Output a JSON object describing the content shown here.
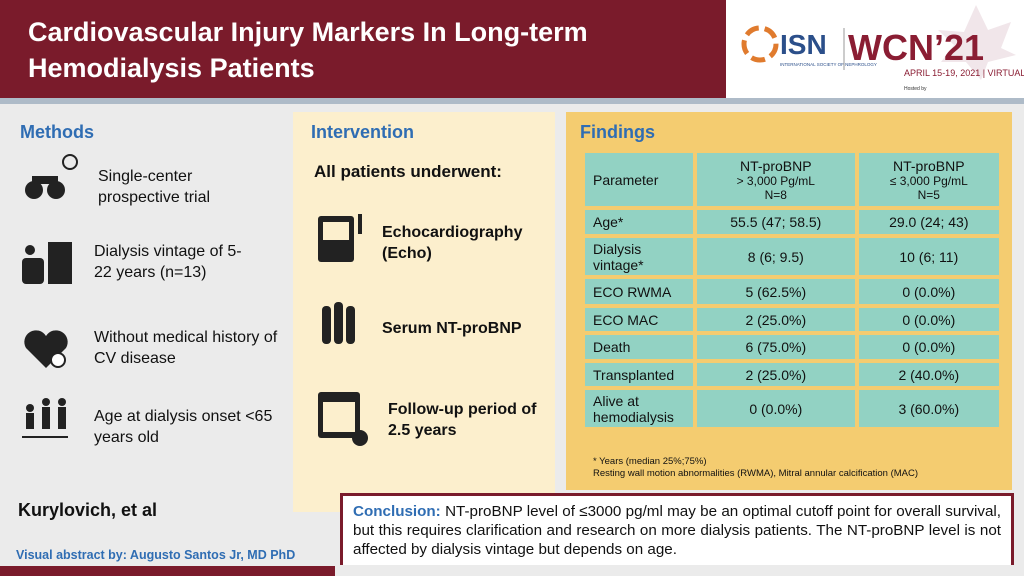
{
  "header": {
    "title": "Cardiovascular Injury Markers In Long-term Hemodialysis Patients",
    "logo": {
      "isn": "ISN",
      "isn_sub": "INTERNATIONAL SOCIETY OF NEPHROLOGY",
      "wcn": "WCN’21",
      "dates": "APRIL 15-19, 2021 | VIRTUAL",
      "hosted": "Hosted by"
    }
  },
  "methods": {
    "title": "Methods",
    "items": [
      "Single-center prospective trial",
      "Dialysis vintage of 5-22 years (n=13)",
      "Without medical history of CV disease",
      "Age at dialysis onset <65 years old"
    ]
  },
  "intervention": {
    "title": "Intervention",
    "lead": "All patients underwent:",
    "items": [
      "Echocardiography (Echo)",
      "Serum NT-proBNP",
      "Follow-up period of 2.5 years"
    ]
  },
  "findings": {
    "title": "Findings",
    "table": {
      "header": [
        [
          "Parameter"
        ],
        [
          "NT-proBNP",
          "> 3,000 Pg/mL",
          "N=8"
        ],
        [
          "NT-proBNP",
          "≤ 3,000 Pg/mL",
          "N=5"
        ]
      ],
      "rows": [
        [
          "Age*",
          "55.5 (47; 58.5)",
          "29.0 (24; 43)"
        ],
        [
          "Dialysis vintage*",
          "8 (6; 9.5)",
          "10 (6; 11)"
        ],
        [
          "ECO RWMA",
          "5 (62.5%)",
          "0 (0.0%)"
        ],
        [
          "ECO MAC",
          "2 (25.0%)",
          "0 (0.0%)"
        ],
        [
          "Death",
          "6 (75.0%)",
          "0 (0.0%)"
        ],
        [
          "Transplanted",
          "2 (25.0%)",
          "2 (40.0%)"
        ],
        [
          "Alive at hemodialysis",
          "0 (0.0%)",
          "3 (60.0%)"
        ]
      ]
    },
    "notes": [
      "* Years (median 25%;75%)",
      "Resting wall motion abnormalities (RWMA), Mitral annular calcification (MAC)"
    ]
  },
  "author": "Kurylovich, et al",
  "conclusion": {
    "label": "Conclusion:",
    "text": "NT-proBNP level of ≤3000 pg/ml may be an optimal cutoff point for overall survival, but this requires clarification and research on more dialysis patients. The NT-proBNP level is not affected by dialysis vintage but depends on age."
  },
  "credit": "Visual abstract by: Augusto Santos Jr, MD PhD"
}
